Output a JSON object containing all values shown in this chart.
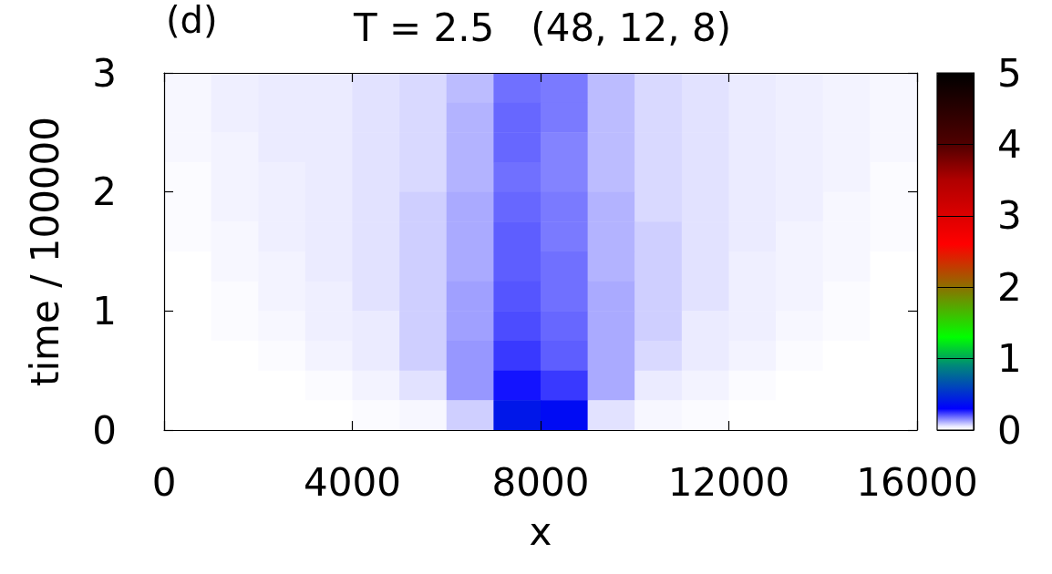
{
  "chart_data": {
    "type": "heatmap",
    "title": "T = 2.5   (48, 12, 8)",
    "annotations": [
      "(d)"
    ],
    "xlabel": "x",
    "ylabel": "time / 100000",
    "cells": [
      [
        0.02,
        0.04,
        0.05,
        0.05,
        0.06,
        0.07,
        0.1,
        0.18,
        0.17,
        0.1,
        0.07,
        0.06,
        0.05,
        0.04,
        0.03,
        0.02
      ],
      [
        0.02,
        0.04,
        0.05,
        0.05,
        0.06,
        0.07,
        0.11,
        0.19,
        0.17,
        0.1,
        0.07,
        0.06,
        0.05,
        0.04,
        0.03,
        0.02
      ],
      [
        0.02,
        0.03,
        0.05,
        0.05,
        0.06,
        0.07,
        0.11,
        0.19,
        0.16,
        0.1,
        0.07,
        0.06,
        0.05,
        0.04,
        0.03,
        0.02
      ],
      [
        0.01,
        0.03,
        0.04,
        0.05,
        0.06,
        0.07,
        0.11,
        0.18,
        0.16,
        0.1,
        0.07,
        0.06,
        0.05,
        0.04,
        0.03,
        0.01
      ],
      [
        0.01,
        0.03,
        0.04,
        0.05,
        0.06,
        0.08,
        0.12,
        0.19,
        0.17,
        0.11,
        0.07,
        0.06,
        0.05,
        0.04,
        0.02,
        0.01
      ],
      [
        0.01,
        0.02,
        0.04,
        0.05,
        0.06,
        0.08,
        0.12,
        0.2,
        0.17,
        0.11,
        0.08,
        0.06,
        0.05,
        0.03,
        0.02,
        0.01
      ],
      [
        0,
        0.02,
        0.03,
        0.05,
        0.06,
        0.08,
        0.12,
        0.2,
        0.18,
        0.11,
        0.08,
        0.06,
        0.04,
        0.03,
        0.02,
        0
      ],
      [
        0,
        0.01,
        0.03,
        0.04,
        0.06,
        0.08,
        0.13,
        0.21,
        0.18,
        0.12,
        0.08,
        0.06,
        0.04,
        0.03,
        0.01,
        0
      ],
      [
        0,
        0.01,
        0.02,
        0.04,
        0.05,
        0.08,
        0.13,
        0.22,
        0.19,
        0.12,
        0.08,
        0.05,
        0.04,
        0.02,
        0.01,
        0
      ],
      [
        0,
        0,
        0.01,
        0.03,
        0.05,
        0.08,
        0.14,
        0.24,
        0.2,
        0.12,
        0.07,
        0.05,
        0.03,
        0.01,
        0,
        0
      ],
      [
        0,
        0,
        0,
        0.01,
        0.03,
        0.06,
        0.14,
        0.28,
        0.24,
        0.12,
        0.05,
        0.03,
        0.01,
        0,
        0,
        0
      ],
      [
        0,
        0,
        0,
        0,
        0.01,
        0.02,
        0.08,
        0.4,
        0.35,
        0.06,
        0.02,
        0.01,
        0,
        0,
        0,
        0
      ]
    ],
    "xlim": [
      0,
      16000
    ],
    "xticks": [
      0,
      4000,
      8000,
      12000,
      16000
    ],
    "ylim": [
      0,
      3
    ],
    "yticks": [
      0,
      1,
      2,
      3
    ],
    "clim": [
      0,
      5
    ],
    "cticks": [
      0,
      1,
      2,
      3,
      4,
      5
    ]
  }
}
